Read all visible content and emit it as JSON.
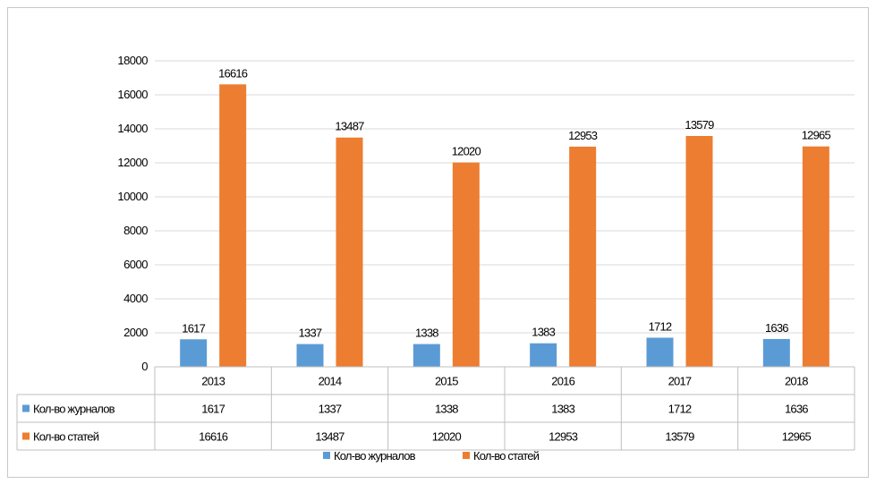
{
  "chart_data": {
    "type": "bar",
    "categories": [
      "2013",
      "2014",
      "2015",
      "2016",
      "2017",
      "2018"
    ],
    "series": [
      {
        "name": "Кол-во журналов",
        "values": [
          1617,
          1337,
          1338,
          1383,
          1712,
          1636
        ],
        "color": "#5b9bd5"
      },
      {
        "name": "Кол-во статей",
        "values": [
          16616,
          13487,
          12020,
          12953,
          13579,
          12965
        ],
        "color": "#ed7d31"
      }
    ],
    "ylim": [
      0,
      18000
    ],
    "yticks": [
      0,
      2000,
      4000,
      6000,
      8000,
      10000,
      12000,
      14000,
      16000,
      18000
    ],
    "grid": true,
    "legend": "bottom",
    "data_table": true
  }
}
